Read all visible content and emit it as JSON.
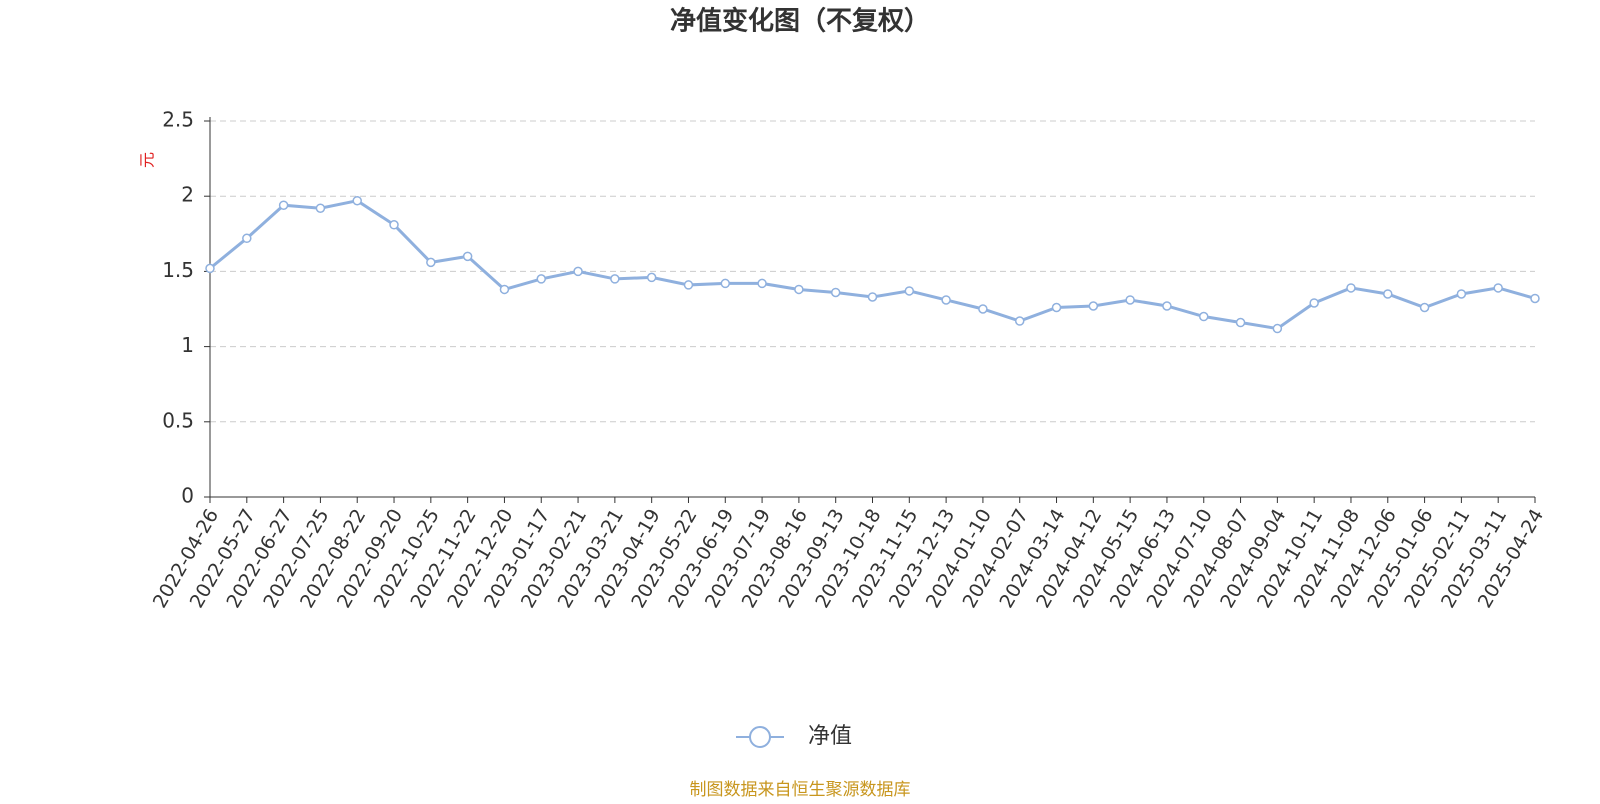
{
  "chart_data": {
    "type": "line",
    "title": "净值变化图（不复权）",
    "y_label": "元",
    "source": "制图数据来自恒生聚源数据库",
    "x": [
      "2022-04-26",
      "2022-05-27",
      "2022-06-27",
      "2022-07-25",
      "2022-08-22",
      "2022-09-20",
      "2022-10-25",
      "2022-11-22",
      "2022-12-20",
      "2023-01-17",
      "2023-02-21",
      "2023-03-21",
      "2023-04-19",
      "2023-05-22",
      "2023-06-19",
      "2023-07-19",
      "2023-08-16",
      "2023-09-13",
      "2023-10-18",
      "2023-11-15",
      "2023-12-13",
      "2024-01-10",
      "2024-02-07",
      "2024-03-14",
      "2024-04-12",
      "2024-05-15",
      "2024-06-13",
      "2024-07-10",
      "2024-08-07",
      "2024-09-04",
      "2024-10-11",
      "2024-11-08",
      "2024-12-06",
      "2025-01-06",
      "2025-02-11",
      "2025-03-11",
      "2025-04-24"
    ],
    "series": [
      {
        "name": "净值",
        "color": "#8fb0de",
        "values": [
          1.52,
          1.72,
          1.94,
          1.92,
          1.97,
          1.81,
          1.56,
          1.6,
          1.38,
          1.45,
          1.5,
          1.45,
          1.46,
          1.41,
          1.42,
          1.42,
          1.38,
          1.36,
          1.33,
          1.37,
          1.31,
          1.25,
          1.17,
          1.26,
          1.27,
          1.31,
          1.27,
          1.2,
          1.16,
          1.12,
          1.29,
          1.39,
          1.35,
          1.26,
          1.35,
          1.39,
          1.32
        ]
      }
    ],
    "ylim": [
      0,
      2.5
    ],
    "yticks": [
      0,
      0.5,
      1,
      1.5,
      2,
      2.5
    ],
    "grid": true
  }
}
